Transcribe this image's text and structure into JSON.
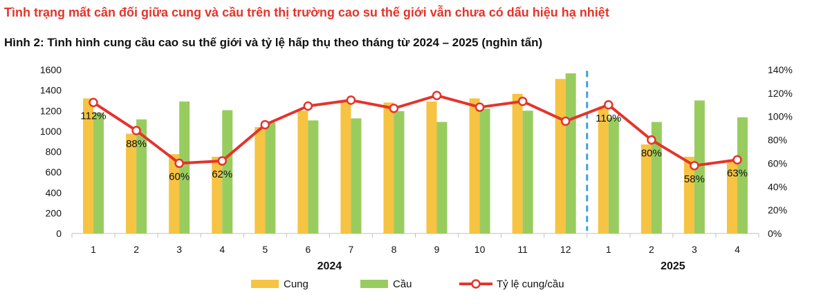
{
  "headline": "Tình trạng mất cân đối giữa cung và cầu trên thị trường cao su thế giới vẫn chưa có dấu hiệu hạ nhiệt",
  "colors": {
    "headline": "#e4342b",
    "cung": "#f6c342",
    "cau": "#99cc5f",
    "ratio_line": "#e4342b",
    "divider": "#3aa0e0",
    "axis": "#bfbfbf",
    "text": "#111111"
  },
  "chart_data": {
    "type": "bar",
    "title": "Hình 2: Tình hình cung cầu cao su thế giới và tỷ lệ hấp thụ theo tháng từ 2024 – 2025 (nghìn tấn)",
    "categories": [
      "1",
      "2",
      "3",
      "4",
      "5",
      "6",
      "7",
      "8",
      "9",
      "10",
      "11",
      "12",
      "1",
      "2",
      "3",
      "4"
    ],
    "year_groups": [
      {
        "label": "2024",
        "start": 0,
        "end": 11
      },
      {
        "label": "2025",
        "start": 12,
        "end": 15
      }
    ],
    "divider_after_index": 11,
    "series": [
      {
        "name": "Cung",
        "axis": "left",
        "kind": "bar",
        "values": [
          1320,
          975,
          775,
          750,
          1040,
          1200,
          1295,
          1280,
          1290,
          1320,
          1365,
          1510,
          1240,
          870,
          750,
          720
        ]
      },
      {
        "name": "Cầu",
        "axis": "left",
        "kind": "bar",
        "values": [
          1180,
          1115,
          1290,
          1205,
          1085,
          1105,
          1125,
          1195,
          1090,
          1220,
          1200,
          1565,
          1130,
          1090,
          1300,
          1135
        ]
      },
      {
        "name": "Tỷ lệ cung/cầu",
        "axis": "right",
        "kind": "line",
        "values": [
          112,
          88,
          60,
          62,
          93,
          109,
          114,
          107,
          118,
          108,
          113,
          96,
          110,
          80,
          58,
          63
        ]
      }
    ],
    "point_labels": [
      {
        "index": 0,
        "text": "112%"
      },
      {
        "index": 1,
        "text": "88%"
      },
      {
        "index": 2,
        "text": "60%"
      },
      {
        "index": 3,
        "text": "62%"
      },
      {
        "index": 12,
        "text": "110%"
      },
      {
        "index": 13,
        "text": "80%"
      },
      {
        "index": 14,
        "text": "58%"
      },
      {
        "index": 15,
        "text": "63%"
      }
    ],
    "y_left": {
      "min": 0,
      "max": 1600,
      "ticks": [
        0,
        200,
        400,
        600,
        800,
        1000,
        1200,
        1400,
        1600
      ]
    },
    "y_right": {
      "min": 0,
      "max": 140,
      "ticks": [
        "0%",
        "20%",
        "40%",
        "60%",
        "80%",
        "100%",
        "120%",
        "140%"
      ]
    },
    "grid": false,
    "legend_position": "bottom-center"
  }
}
